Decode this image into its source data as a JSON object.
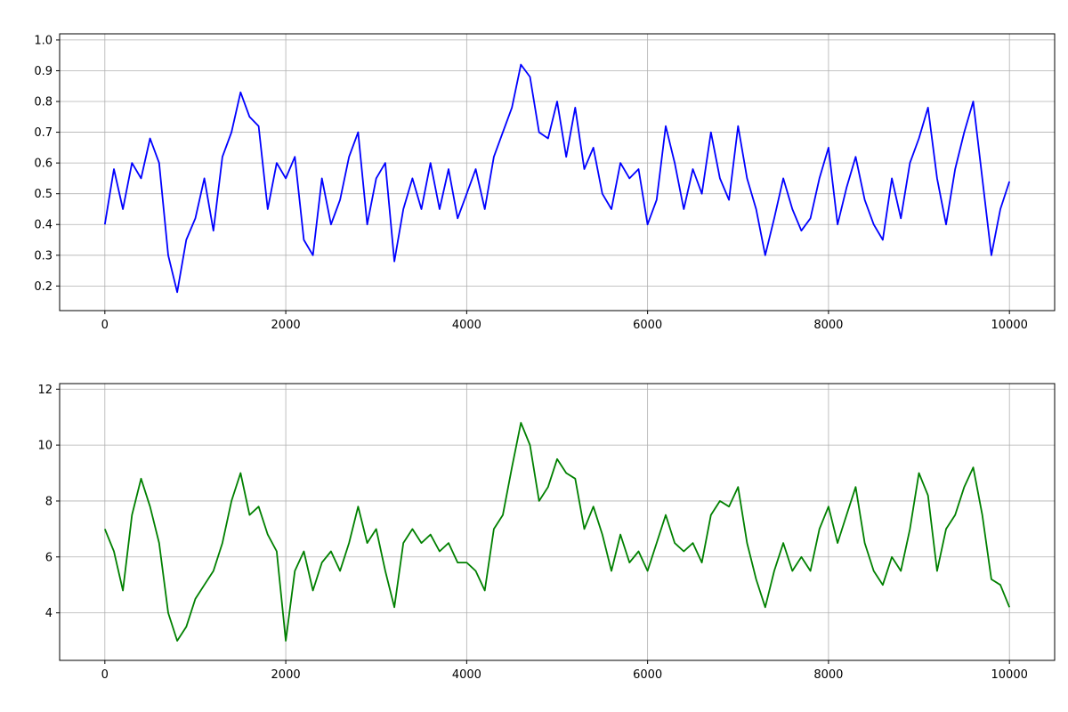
{
  "chart_data": [
    {
      "type": "line",
      "title": "",
      "xlabel": "",
      "ylabel": "",
      "xlim": [
        -500,
        10500
      ],
      "ylim": [
        0.12,
        1.02
      ],
      "xticks": [
        0,
        2000,
        4000,
        6000,
        8000,
        10000
      ],
      "yticks": [
        0.2,
        0.3,
        0.4,
        0.5,
        0.6,
        0.7,
        0.8,
        0.9,
        1.0
      ],
      "grid": true,
      "color": "#0000ff",
      "series": [
        {
          "x": [
            0,
            100,
            200,
            300,
            400,
            500,
            600,
            700,
            800,
            900,
            1000,
            1100,
            1200,
            1300,
            1400,
            1500,
            1600,
            1700,
            1800,
            1900,
            2000,
            2100,
            2200,
            2300,
            2400,
            2500,
            2600,
            2700,
            2800,
            2900,
            3000,
            3100,
            3200,
            3300,
            3400,
            3500,
            3600,
            3700,
            3800,
            3900,
            4000,
            4100,
            4200,
            4300,
            4400,
            4500,
            4600,
            4700,
            4800,
            4900,
            5000,
            5100,
            5200,
            5300,
            5400,
            5500,
            5600,
            5700,
            5800,
            5900,
            6000,
            6100,
            6200,
            6300,
            6400,
            6500,
            6600,
            6700,
            6800,
            6900,
            7000,
            7100,
            7200,
            7300,
            7400,
            7500,
            7600,
            7700,
            7800,
            7900,
            8000,
            8100,
            8200,
            8300,
            8400,
            8500,
            8600,
            8700,
            8800,
            8900,
            9000,
            9100,
            9200,
            9300,
            9400,
            9500,
            9600,
            9700,
            9800,
            9900,
            10000
          ],
          "y": [
            0.4,
            0.58,
            0.45,
            0.6,
            0.55,
            0.68,
            0.6,
            0.3,
            0.18,
            0.35,
            0.42,
            0.55,
            0.38,
            0.62,
            0.7,
            0.83,
            0.75,
            0.72,
            0.45,
            0.6,
            0.55,
            0.62,
            0.35,
            0.3,
            0.55,
            0.4,
            0.48,
            0.62,
            0.7,
            0.4,
            0.55,
            0.6,
            0.28,
            0.45,
            0.55,
            0.45,
            0.6,
            0.45,
            0.58,
            0.42,
            0.5,
            0.58,
            0.45,
            0.62,
            0.7,
            0.78,
            0.92,
            0.88,
            0.7,
            0.68,
            0.8,
            0.62,
            0.78,
            0.58,
            0.65,
            0.5,
            0.45,
            0.6,
            0.55,
            0.58,
            0.4,
            0.48,
            0.72,
            0.6,
            0.45,
            0.58,
            0.5,
            0.7,
            0.55,
            0.48,
            0.72,
            0.55,
            0.45,
            0.3,
            0.42,
            0.55,
            0.45,
            0.38,
            0.42,
            0.55,
            0.65,
            0.4,
            0.52,
            0.62,
            0.48,
            0.4,
            0.35,
            0.55,
            0.42,
            0.6,
            0.68,
            0.78,
            0.55,
            0.4,
            0.58,
            0.7,
            0.8,
            0.55,
            0.3,
            0.45,
            0.54
          ]
        }
      ]
    },
    {
      "type": "line",
      "title": "",
      "xlabel": "",
      "ylabel": "",
      "xlim": [
        -500,
        10500
      ],
      "ylim": [
        2.3,
        12.2
      ],
      "xticks": [
        0,
        2000,
        4000,
        6000,
        8000,
        10000
      ],
      "yticks": [
        4,
        6,
        8,
        10,
        12
      ],
      "grid": true,
      "color": "#008000",
      "series": [
        {
          "x": [
            0,
            100,
            200,
            300,
            400,
            500,
            600,
            700,
            800,
            900,
            1000,
            1100,
            1200,
            1300,
            1400,
            1500,
            1600,
            1700,
            1800,
            1900,
            2000,
            2100,
            2200,
            2300,
            2400,
            2500,
            2600,
            2700,
            2800,
            2900,
            3000,
            3100,
            3200,
            3300,
            3400,
            3500,
            3600,
            3700,
            3800,
            3900,
            4000,
            4100,
            4200,
            4300,
            4400,
            4500,
            4600,
            4700,
            4800,
            4900,
            5000,
            5100,
            5200,
            5300,
            5400,
            5500,
            5600,
            5700,
            5800,
            5900,
            6000,
            6100,
            6200,
            6300,
            6400,
            6500,
            6600,
            6700,
            6800,
            6900,
            7000,
            7100,
            7200,
            7300,
            7400,
            7500,
            7600,
            7700,
            7800,
            7900,
            8000,
            8100,
            8200,
            8300,
            8400,
            8500,
            8600,
            8700,
            8800,
            8900,
            9000,
            9100,
            9200,
            9300,
            9400,
            9500,
            9600,
            9700,
            9800,
            9900,
            10000
          ],
          "y": [
            7.0,
            6.2,
            4.8,
            7.5,
            8.8,
            7.8,
            6.5,
            4.0,
            3.0,
            3.5,
            4.5,
            5.0,
            5.5,
            6.5,
            8.0,
            9.0,
            7.5,
            7.8,
            6.8,
            6.2,
            3.0,
            5.5,
            6.2,
            4.8,
            5.8,
            6.2,
            5.5,
            6.5,
            7.8,
            6.5,
            7.0,
            5.5,
            4.2,
            6.5,
            7.0,
            6.5,
            6.8,
            6.2,
            6.5,
            5.8,
            5.8,
            5.5,
            4.8,
            7.0,
            7.5,
            9.2,
            10.8,
            10.0,
            8.0,
            8.5,
            9.5,
            9.0,
            8.8,
            7.0,
            7.8,
            6.8,
            5.5,
            6.8,
            5.8,
            6.2,
            5.5,
            6.5,
            7.5,
            6.5,
            6.2,
            6.5,
            5.8,
            7.5,
            8.0,
            7.8,
            8.5,
            6.5,
            5.2,
            4.2,
            5.5,
            6.5,
            5.5,
            6.0,
            5.5,
            7.0,
            7.8,
            6.5,
            7.5,
            8.5,
            6.5,
            5.5,
            5.0,
            6.0,
            5.5,
            7.0,
            9.0,
            8.2,
            5.5,
            7.0,
            7.5,
            8.5,
            9.2,
            7.5,
            5.2,
            5.0,
            4.2
          ]
        }
      ]
    }
  ]
}
